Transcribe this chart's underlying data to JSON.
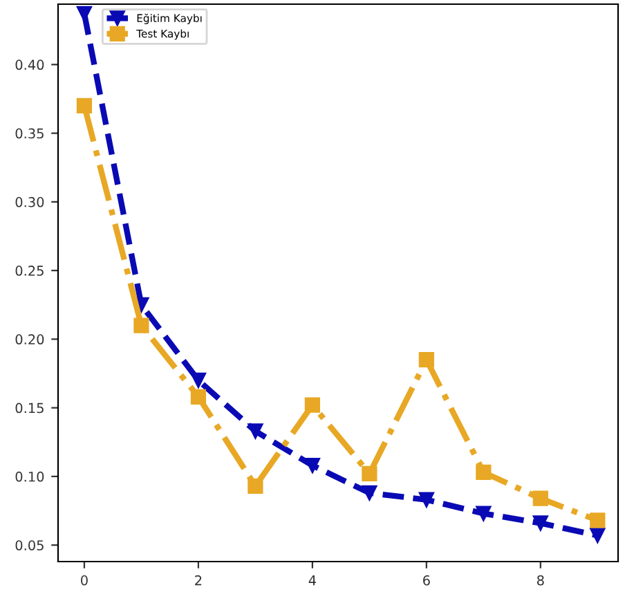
{
  "chart_data": {
    "type": "line",
    "x": [
      0,
      1,
      2,
      3,
      4,
      5,
      6,
      7,
      8,
      9
    ],
    "series": [
      {
        "name": "Eğitim Kaybı",
        "color": "#0a0ab4",
        "marker": "triangle",
        "line_style": "dashed",
        "values": [
          0.437,
          0.225,
          0.17,
          0.133,
          0.108,
          0.088,
          0.083,
          0.073,
          0.066,
          0.057
        ]
      },
      {
        "name": "Test Kaybı",
        "color": "#e8a825",
        "marker": "square",
        "line_style": "dashdot",
        "values": [
          0.37,
          0.21,
          0.158,
          0.093,
          0.152,
          0.102,
          0.185,
          0.103,
          0.084,
          0.068
        ]
      }
    ],
    "xlim": [
      -0.46,
      9.36
    ],
    "xticks": [
      0,
      2,
      4,
      6,
      8
    ],
    "ylim": [
      0.038,
      0.444
    ],
    "yticks": [
      0.05,
      {
        "value": 0.1,
        "label": "0.10"
      },
      0.15,
      {
        "value": 0.2,
        "label": "0.20"
      },
      0.25,
      {
        "value": 0.3,
        "label": "0.30"
      },
      0.35,
      {
        "value": 0.4,
        "label": "0.40"
      }
    ],
    "legend": "top left",
    "grid": false
  }
}
